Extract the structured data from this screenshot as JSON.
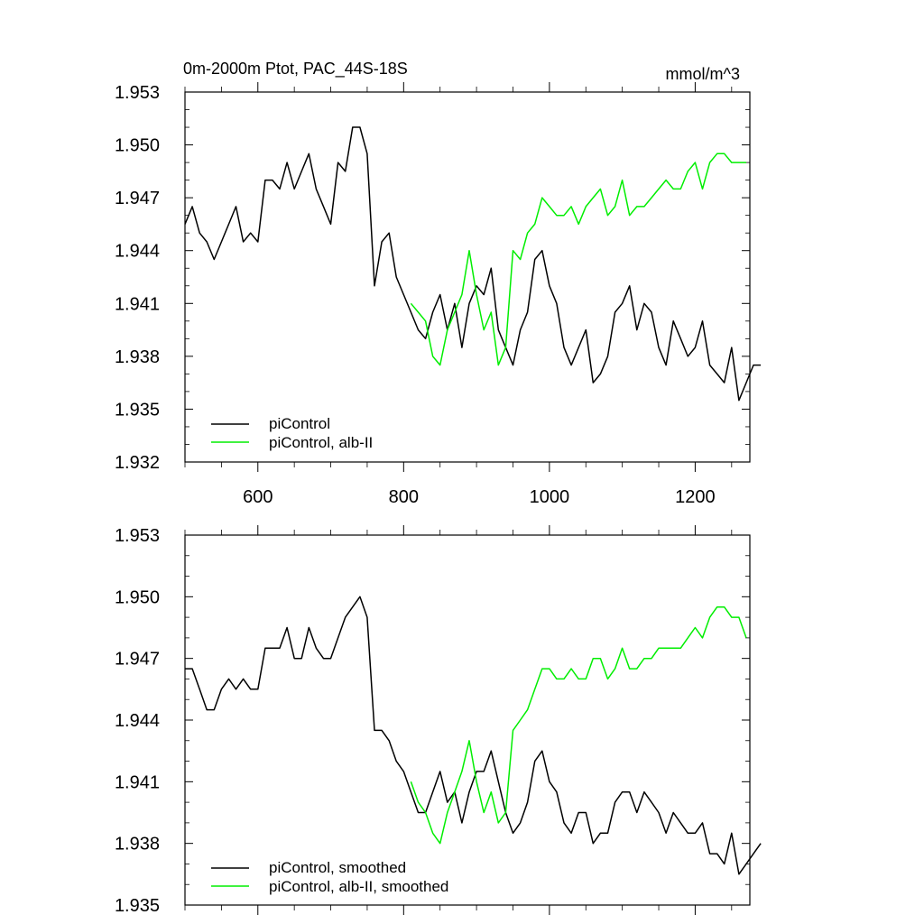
{
  "colors": {
    "piControl": "#000000",
    "alb_II": "#00ee00"
  },
  "chart_data": [
    {
      "type": "line",
      "title": "0m-2000m Ptot, PAC_44S-18S",
      "units": "mmol/m^3",
      "xlim": [
        500,
        1275
      ],
      "ylim": [
        1.932,
        1.953
      ],
      "xticks": [
        600,
        800,
        1000,
        1200
      ],
      "yticks": [
        "1.932",
        "1.935",
        "1.938",
        "1.941",
        "1.944",
        "1.947",
        "1.950",
        "1.953"
      ],
      "show_x_tick_labels": true,
      "legend_position": "bottom-left",
      "series": [
        {
          "name": "piControl",
          "color": "#000000",
          "x_start": 500,
          "x_step": 10,
          "values": [
            1.9455,
            1.9465,
            1.945,
            1.9445,
            1.9435,
            1.9445,
            1.9455,
            1.9465,
            1.9445,
            1.945,
            1.9445,
            1.948,
            1.948,
            1.9475,
            1.949,
            1.9475,
            1.9485,
            1.9495,
            1.9475,
            1.9465,
            1.9455,
            1.949,
            1.9485,
            1.951,
            1.951,
            1.9495,
            1.942,
            1.9445,
            1.945,
            1.9425,
            1.9415,
            1.9405,
            1.9395,
            1.939,
            1.9405,
            1.9415,
            1.9395,
            1.941,
            1.9385,
            1.941,
            1.942,
            1.9415,
            1.943,
            1.9395,
            1.9385,
            1.9375,
            1.9395,
            1.9405,
            1.9435,
            1.944,
            1.942,
            1.941,
            1.9385,
            1.9375,
            1.9385,
            1.9395,
            1.9365,
            1.937,
            1.938,
            1.9405,
            1.941,
            1.942,
            1.9395,
            1.941,
            1.9405,
            1.9385,
            1.9375,
            1.94,
            1.939,
            1.938,
            1.9385,
            1.94,
            1.9375,
            1.937,
            1.9365,
            1.9385,
            1.9355,
            1.9365,
            1.9375,
            1.9375
          ]
        },
        {
          "name": "piControl, alb-II",
          "color": "#00ee00",
          "x_start": 810,
          "x_step": 10,
          "values": [
            1.941,
            1.9405,
            1.94,
            1.938,
            1.9375,
            1.9395,
            1.9405,
            1.9415,
            1.944,
            1.9415,
            1.9395,
            1.9405,
            1.9375,
            1.9385,
            1.944,
            1.9435,
            1.945,
            1.9455,
            1.947,
            1.9465,
            1.946,
            1.946,
            1.9465,
            1.9455,
            1.9465,
            1.947,
            1.9475,
            1.946,
            1.9465,
            1.948,
            1.946,
            1.9465,
            1.9465,
            1.947,
            1.9475,
            1.948,
            1.9475,
            1.9475,
            1.9485,
            1.949,
            1.9475,
            1.949,
            1.9495,
            1.9495,
            1.949,
            1.949,
            1.949
          ]
        }
      ]
    },
    {
      "type": "line",
      "xlim": [
        500,
        1275
      ],
      "ylim": [
        1.935,
        1.953
      ],
      "xticks": [
        600,
        800,
        1000,
        1200
      ],
      "yticks": [
        "1.935",
        "1.938",
        "1.941",
        "1.944",
        "1.947",
        "1.950",
        "1.953"
      ],
      "show_x_tick_labels": false,
      "legend_position": "bottom-left",
      "series": [
        {
          "name": "piControl, smoothed",
          "color": "#000000",
          "x_start": 500,
          "x_step": 10,
          "values": [
            1.9465,
            1.9465,
            1.9455,
            1.9445,
            1.9445,
            1.9455,
            1.946,
            1.9455,
            1.946,
            1.9455,
            1.9455,
            1.9475,
            1.9475,
            1.9475,
            1.9485,
            1.947,
            1.947,
            1.9485,
            1.9475,
            1.947,
            1.947,
            1.948,
            1.949,
            1.9495,
            1.95,
            1.949,
            1.9435,
            1.9435,
            1.943,
            1.942,
            1.9415,
            1.9405,
            1.9395,
            1.9395,
            1.9405,
            1.9415,
            1.94,
            1.9405,
            1.939,
            1.9405,
            1.9415,
            1.9415,
            1.9425,
            1.941,
            1.9395,
            1.9385,
            1.939,
            1.94,
            1.942,
            1.9425,
            1.941,
            1.9405,
            1.939,
            1.9385,
            1.9395,
            1.9395,
            1.938,
            1.9385,
            1.9385,
            1.94,
            1.9405,
            1.9405,
            1.9395,
            1.9405,
            1.94,
            1.9395,
            1.9385,
            1.9395,
            1.939,
            1.9385,
            1.9385,
            1.939,
            1.9375,
            1.9375,
            1.937,
            1.9385,
            1.9365,
            1.937,
            1.9375,
            1.938
          ]
        },
        {
          "name": "piControl, alb-II, smoothed",
          "color": "#00ee00",
          "x_start": 810,
          "x_step": 10,
          "values": [
            1.941,
            1.94,
            1.9395,
            1.9385,
            1.938,
            1.9395,
            1.9405,
            1.9415,
            1.943,
            1.941,
            1.9395,
            1.9405,
            1.939,
            1.9395,
            1.9435,
            1.944,
            1.9445,
            1.9455,
            1.9465,
            1.9465,
            1.946,
            1.946,
            1.9465,
            1.946,
            1.946,
            1.947,
            1.947,
            1.946,
            1.9465,
            1.9475,
            1.9465,
            1.9465,
            1.947,
            1.947,
            1.9475,
            1.9475,
            1.9475,
            1.9475,
            1.948,
            1.9485,
            1.948,
            1.949,
            1.9495,
            1.9495,
            1.949,
            1.949,
            1.948
          ]
        }
      ]
    }
  ]
}
